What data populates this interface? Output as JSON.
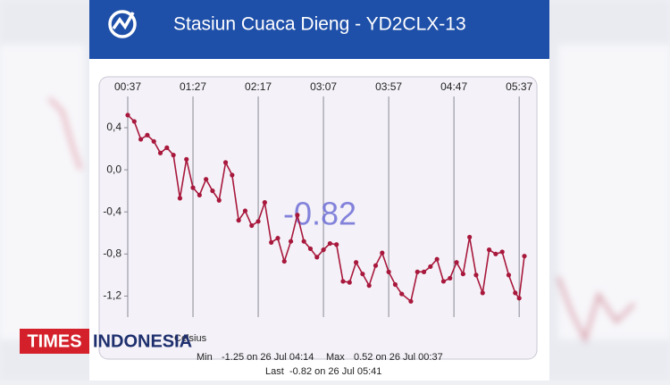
{
  "header": {
    "title": "Stasiun Cuaca Dieng - YD2CLX-13"
  },
  "chart_data": {
    "type": "line",
    "x": [
      "00:37",
      "00:42",
      "00:47",
      "00:52",
      "00:57",
      "01:02",
      "01:07",
      "01:12",
      "01:17",
      "01:22",
      "01:27",
      "01:32",
      "01:37",
      "01:42",
      "01:47",
      "01:52",
      "01:57",
      "02:02",
      "02:07",
      "02:12",
      "02:17",
      "02:22",
      "02:27",
      "02:32",
      "02:37",
      "02:42",
      "02:47",
      "02:52",
      "02:57",
      "03:02",
      "03:07",
      "03:12",
      "03:17",
      "03:22",
      "03:27",
      "03:32",
      "03:37",
      "03:42",
      "03:47",
      "03:52",
      "03:57",
      "04:02",
      "04:07",
      "04:14",
      "04:19",
      "04:24",
      "04:29",
      "04:34",
      "04:39",
      "04:44",
      "04:49",
      "04:54",
      "04:59",
      "05:04",
      "05:09",
      "05:14",
      "05:19",
      "05:24",
      "05:29",
      "05:34",
      "05:37",
      "05:41"
    ],
    "values": [
      0.52,
      0.46,
      0.29,
      0.33,
      0.27,
      0.16,
      0.21,
      0.14,
      -0.27,
      0.1,
      -0.17,
      -0.24,
      -0.09,
      -0.2,
      -0.29,
      0.07,
      -0.05,
      -0.48,
      -0.39,
      -0.53,
      -0.49,
      -0.31,
      -0.69,
      -0.65,
      -0.87,
      -0.68,
      -0.43,
      -0.68,
      -0.75,
      -0.83,
      -0.76,
      -0.7,
      -0.71,
      -1.06,
      -1.07,
      -0.88,
      -0.99,
      -1.1,
      -0.91,
      -0.79,
      -0.97,
      -1.09,
      -1.18,
      -1.25,
      -0.97,
      -0.97,
      -0.92,
      -0.85,
      -1.06,
      -1.03,
      -0.88,
      -0.99,
      -0.64,
      -1.0,
      -1.17,
      -0.76,
      -0.8,
      -0.78,
      -1.0,
      -1.17,
      -1.22,
      -0.82
    ],
    "color": "#a8183c",
    "xlim": [
      "00:37",
      "05:41"
    ],
    "xticks": [
      "00:37",
      "01:27",
      "02:17",
      "03:07",
      "03:57",
      "04:47",
      "05:37"
    ],
    "ylim": [
      -1.4,
      0.68
    ],
    "yticks": [
      {
        "value": 0.4,
        "label": "0,4"
      },
      {
        "value": 0,
        "label": "0,0"
      },
      {
        "value": -0.4,
        "label": "-0,4"
      },
      {
        "value": -0.8,
        "label": "-0,8"
      },
      {
        "value": -1.2,
        "label": "-1,2"
      }
    ],
    "grid": "x",
    "unit": "Celsius",
    "stats": [
      {
        "label": "Min",
        "text": "-1.25 on 26 Jul 04:14"
      },
      {
        "label": "Max",
        "text": "0.52 on 26 Jul 00:37"
      },
      {
        "label": "Last",
        "text": "-0.82 on 26 Jul 05:41"
      }
    ]
  },
  "watermark": {
    "brand": "TIMES",
    "name": "INDONESIA"
  }
}
